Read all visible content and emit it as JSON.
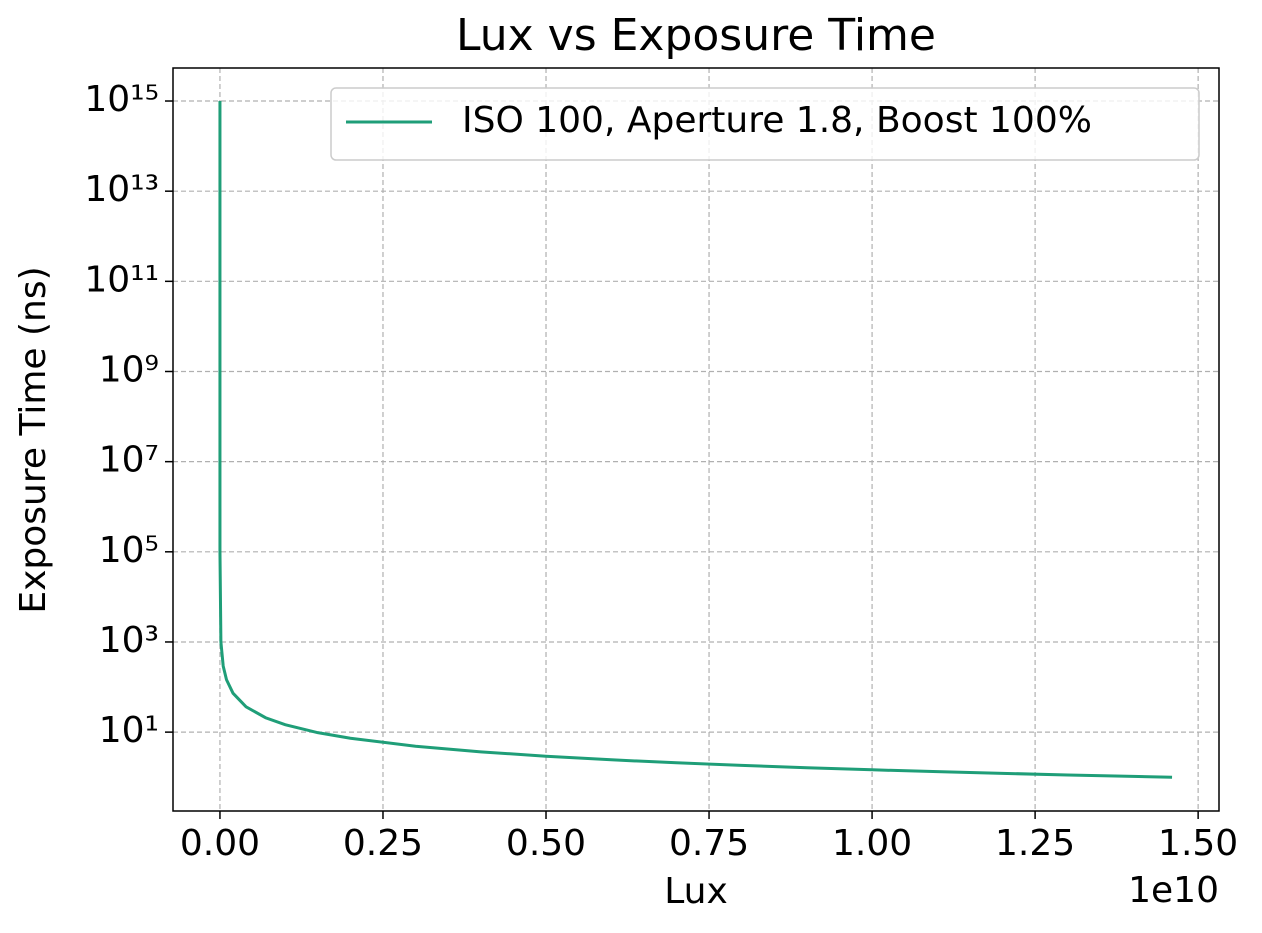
{
  "chart_data": {
    "type": "line",
    "title": "Lux vs Exposure Time",
    "xlabel": "Lux",
    "ylabel": "Exposure Time (ns)",
    "x_offset_label": "1e10",
    "x": [
      1.46e-05,
      0.00146,
      0.146,
      14.6,
      1460,
      146000,
      14600000.0,
      50000000.0,
      100000000.0,
      200000000.0,
      400000000.0,
      700000000.0,
      1000000000.0,
      1500000000.0,
      2000000000.0,
      3000000000.0,
      4000000000.0,
      5000000000.0,
      6000000000.0,
      7000000000.0,
      8000000000.0,
      9000000000.0,
      10000000000.0,
      11000000000.0,
      12000000000.0,
      13000000000.0,
      14000000000.0,
      14600000000.0
    ],
    "series": [
      {
        "name": "ISO 100, Aperture 1.8, Boost 100%",
        "color": "#1f9e78",
        "values": [
          1000000000000000.0,
          10000000000000.0,
          100000000000.0,
          1000000000.0,
          10000000.0,
          100000.0,
          1000,
          292,
          146,
          73,
          36.5,
          20.86,
          14.6,
          9.733,
          7.3,
          4.867,
          3.65,
          2.92,
          2.433,
          2.086,
          1.825,
          1.622,
          1.46,
          1.327,
          1.217,
          1.123,
          1.043,
          1
        ]
      }
    ],
    "xlim": [
      -720000000.0,
      15320000000.0
    ],
    "xticks": [
      {
        "value": 0,
        "label": "0.00"
      },
      {
        "value": 2500000000.0,
        "label": "0.25"
      },
      {
        "value": 5000000000.0,
        "label": "0.50"
      },
      {
        "value": 7500000000.0,
        "label": "0.75"
      },
      {
        "value": 10000000000.0,
        "label": "1.00"
      },
      {
        "value": 12500000000.0,
        "label": "1.25"
      },
      {
        "value": 15000000000.0,
        "label": "1.50"
      }
    ],
    "ylim": [
      0.178,
      5400000000000000.0
    ],
    "yscale": "log",
    "yticks": [
      {
        "value": 10,
        "label": "10¹"
      },
      {
        "value": 1000,
        "label": "10³"
      },
      {
        "value": 100000,
        "label": "10⁵"
      },
      {
        "value": 10000000.0,
        "label": "10⁷"
      },
      {
        "value": 1000000000.0,
        "label": "10⁹"
      },
      {
        "value": 100000000000.0,
        "label": "10¹¹"
      },
      {
        "value": 10000000000000.0,
        "label": "10¹³"
      },
      {
        "value": 1000000000000000.0,
        "label": "10¹⁵"
      }
    ],
    "grid": true,
    "legend": "upper right"
  }
}
